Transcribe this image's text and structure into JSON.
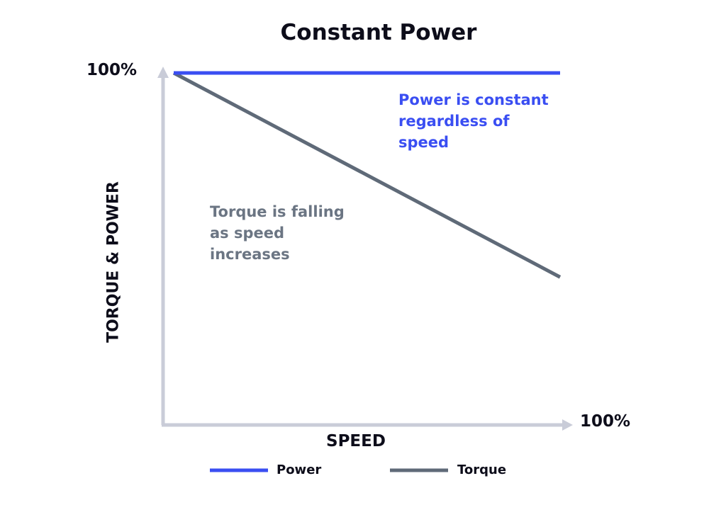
{
  "chart_data": {
    "type": "line",
    "title": "Constant Power",
    "xlabel": "SPEED",
    "ylabel": "TORQUE & POWER",
    "x_tick_label": "100%",
    "y_tick_label": "100%",
    "xlim": [
      0,
      100
    ],
    "ylim": [
      0,
      100
    ],
    "grid": false,
    "legend_position": "bottom",
    "series": [
      {
        "name": "Power",
        "color": "#3a4ef2",
        "x": [
          0,
          100
        ],
        "y": [
          100,
          100
        ]
      },
      {
        "name": "Torque",
        "color": "#5f6a78",
        "x": [
          0,
          100
        ],
        "y": [
          100,
          42
        ]
      }
    ],
    "annotations": [
      {
        "text": "Power is constant\nregardless of\nspeed",
        "color": "#3a4ef2"
      },
      {
        "text": "Torque is falling\nas speed\nincreases",
        "color": "#6b7583"
      }
    ],
    "axis_color": "#c9ccd8"
  }
}
